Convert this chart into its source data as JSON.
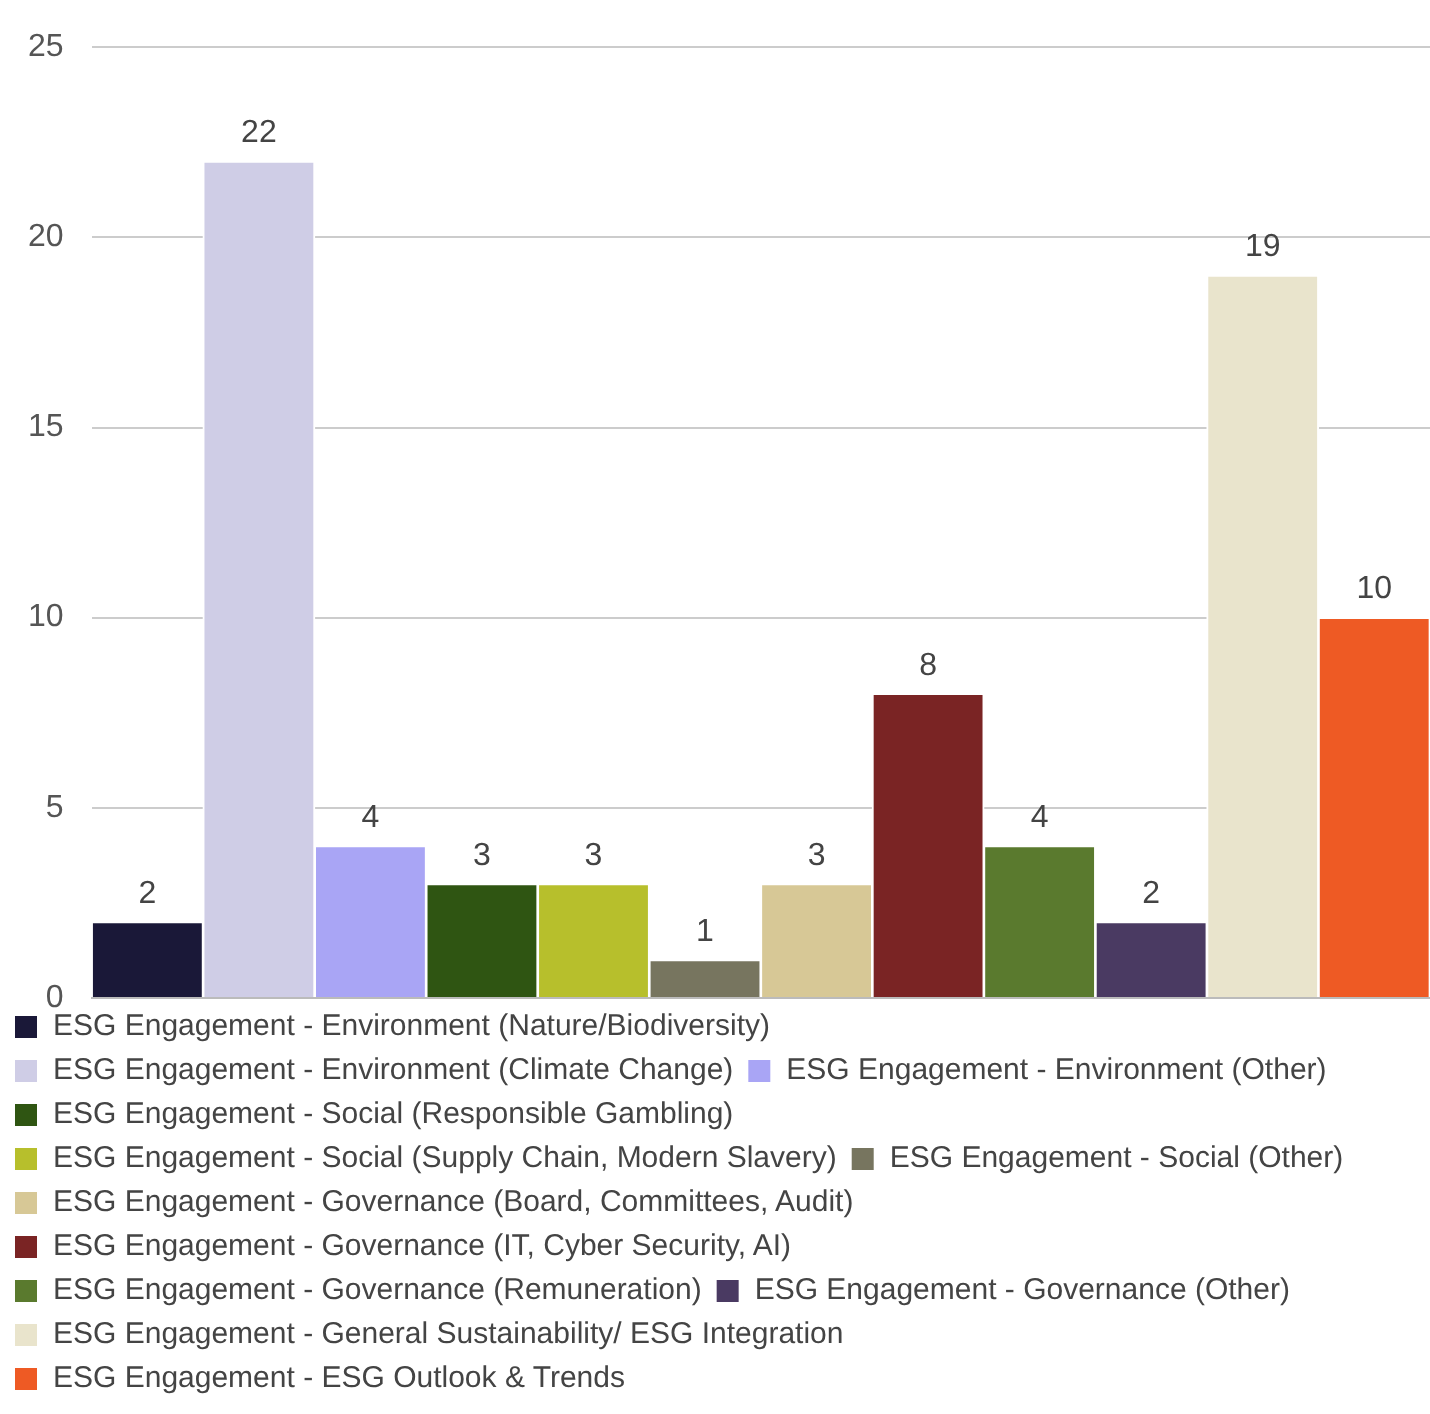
{
  "chart_data": {
    "type": "bar",
    "categories": [
      null
    ],
    "series": [
      {
        "name": "ESG Engagement - Environment (Nature/Biodiversity)",
        "color": "#1a1838",
        "values": [
          2
        ]
      },
      {
        "name": "ESG Engagement - Environment (Climate Change)",
        "color": "#cfcde6",
        "values": [
          22
        ]
      },
      {
        "name": "ESG Engagement - Environment (Other)",
        "color": "#a9a5f5",
        "values": [
          4
        ]
      },
      {
        "name": "ESG Engagement - Social (Responsible Gambling)",
        "color": "#2f5512",
        "values": [
          3
        ]
      },
      {
        "name": "ESG Engagement - Social (Supply Chain, Modern Slavery)",
        "color": "#b7bf2c",
        "values": [
          3
        ]
      },
      {
        "name": "ESG Engagement - Social (Other)",
        "color": "#77755f",
        "values": [
          1
        ]
      },
      {
        "name": "ESG Engagement - Governance (Board, Committees, Audit)",
        "color": "#d7c896",
        "values": [
          3
        ]
      },
      {
        "name": "ESG Engagement - Governance (IT, Cyber Security, AI)",
        "color": "#7a2424",
        "values": [
          8
        ]
      },
      {
        "name": "ESG Engagement - Governance (Remuneration)",
        "color": "#5a7a2e",
        "values": [
          4
        ]
      },
      {
        "name": "ESG Engagement - Governance (Other)",
        "color": "#4a3a62",
        "values": [
          2
        ]
      },
      {
        "name": "ESG Engagement - General Sustainability/ ESG Integration",
        "color": "#e9e4cc",
        "values": [
          19
        ]
      },
      {
        "name": "ESG Engagement - ESG Outlook & Trends",
        "color": "#ee5a24",
        "values": [
          10
        ]
      }
    ],
    "ylim": [
      0,
      25
    ],
    "yticks": [
      0,
      5,
      10,
      15,
      20,
      25
    ],
    "grid": "y",
    "legend": "bottom",
    "data_labels": true
  }
}
